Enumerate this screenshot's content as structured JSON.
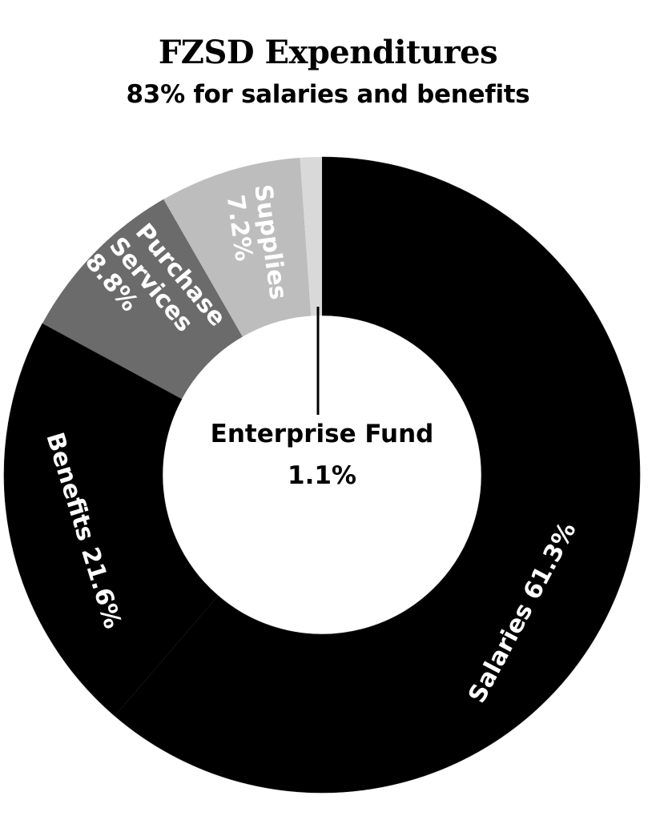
{
  "chart_data": {
    "type": "pie",
    "variant": "donut",
    "title": "FZSD Expenditures",
    "subtitle": "83% for salaries and benefits",
    "categories": [
      "Salaries",
      "Benefits",
      "Purchase Services",
      "Supplies",
      "Enterprise Fund"
    ],
    "values": [
      61.3,
      21.6,
      8.8,
      7.2,
      1.1
    ],
    "unit": "%",
    "colors": [
      "#000000",
      "#000000",
      "#6b6b6b",
      "#bdbdbd",
      "#d9d9d9"
    ],
    "labels": [
      "Salaries 61.3%",
      "Benefits 21.6%",
      "Purchase Services 8.8%",
      "Supplies 7.2%",
      "Enterprise Fund 1.1%"
    ],
    "start_angle": "12 o'clock",
    "direction": "clockwise",
    "legend": "none (inline labels)"
  },
  "header": {
    "title": "FZSD Expenditures",
    "subtitle": "83% for salaries and benefits"
  },
  "slices": {
    "salaries": {
      "label": "Salaries 61.3%"
    },
    "benefits": {
      "label": "Benefits 21.6%"
    },
    "purchase": {
      "line1": "Purchase",
      "line2": "Services",
      "line3": "8.8%"
    },
    "supplies": {
      "line1": "Supplies",
      "line2": "7.2%"
    },
    "enterprise": {
      "line1": "Enterprise Fund",
      "line2": "1.1%"
    }
  }
}
